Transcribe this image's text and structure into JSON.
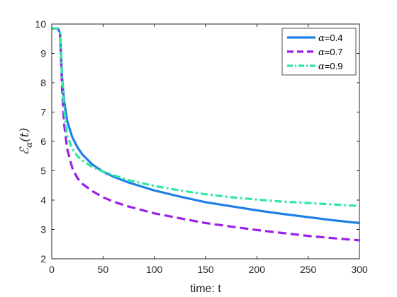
{
  "chart_data": {
    "type": "line",
    "xlabel": "time: t",
    "ylabel": {
      "main": "ℰ",
      "sub": "α",
      "arg": "(t)"
    },
    "xlim": [
      0,
      300
    ],
    "ylim": [
      2,
      10
    ],
    "xticks": [
      0,
      50,
      100,
      150,
      200,
      250,
      300
    ],
    "yticks": [
      2,
      3,
      4,
      5,
      6,
      7,
      8,
      9,
      10
    ],
    "grid": false,
    "legend_position": "top-right",
    "series": [
      {
        "name": "α=0.4",
        "label_symbol": "α",
        "label_value": "=0.4",
        "color": "#1f7fe6",
        "style": "solid",
        "points": [
          [
            0,
            9.85
          ],
          [
            6,
            9.85
          ],
          [
            8,
            9.7
          ],
          [
            9,
            9.0
          ],
          [
            10,
            8.2
          ],
          [
            12,
            7.4
          ],
          [
            15,
            6.7
          ],
          [
            20,
            6.15
          ],
          [
            25,
            5.8
          ],
          [
            30,
            5.55
          ],
          [
            40,
            5.2
          ],
          [
            50,
            4.97
          ],
          [
            60,
            4.8
          ],
          [
            75,
            4.6
          ],
          [
            100,
            4.33
          ],
          [
            125,
            4.12
          ],
          [
            150,
            3.93
          ],
          [
            175,
            3.79
          ],
          [
            200,
            3.65
          ],
          [
            225,
            3.53
          ],
          [
            250,
            3.42
          ],
          [
            275,
            3.31
          ],
          [
            300,
            3.22
          ]
        ]
      },
      {
        "name": "α=0.7",
        "label_symbol": "α",
        "label_value": "=0.7",
        "color": "#9b1fe8",
        "style": "dashed",
        "points": [
          [
            0,
            9.85
          ],
          [
            6,
            9.85
          ],
          [
            8,
            9.7
          ],
          [
            9,
            9.0
          ],
          [
            10,
            7.8
          ],
          [
            12,
            6.6
          ],
          [
            15,
            5.75
          ],
          [
            20,
            5.1
          ],
          [
            25,
            4.75
          ],
          [
            30,
            4.55
          ],
          [
            40,
            4.3
          ],
          [
            50,
            4.1
          ],
          [
            60,
            3.95
          ],
          [
            75,
            3.78
          ],
          [
            100,
            3.55
          ],
          [
            125,
            3.38
          ],
          [
            150,
            3.22
          ],
          [
            175,
            3.1
          ],
          [
            200,
            2.98
          ],
          [
            225,
            2.88
          ],
          [
            250,
            2.78
          ],
          [
            275,
            2.7
          ],
          [
            300,
            2.63
          ]
        ]
      },
      {
        "name": "α=0.9",
        "label_symbol": "α",
        "label_value": "=0.9",
        "color": "#2ee8a0",
        "style": "dashdot",
        "points": [
          [
            0,
            9.85
          ],
          [
            6,
            9.85
          ],
          [
            8,
            9.7
          ],
          [
            9,
            9.2
          ],
          [
            10,
            8.2
          ],
          [
            12,
            7.1
          ],
          [
            15,
            6.2
          ],
          [
            20,
            5.75
          ],
          [
            25,
            5.5
          ],
          [
            30,
            5.35
          ],
          [
            40,
            5.12
          ],
          [
            50,
            4.97
          ],
          [
            60,
            4.85
          ],
          [
            75,
            4.68
          ],
          [
            100,
            4.48
          ],
          [
            125,
            4.33
          ],
          [
            150,
            4.2
          ],
          [
            175,
            4.1
          ],
          [
            200,
            4.02
          ],
          [
            225,
            3.95
          ],
          [
            250,
            3.9
          ],
          [
            275,
            3.85
          ],
          [
            300,
            3.8
          ]
        ]
      }
    ]
  }
}
